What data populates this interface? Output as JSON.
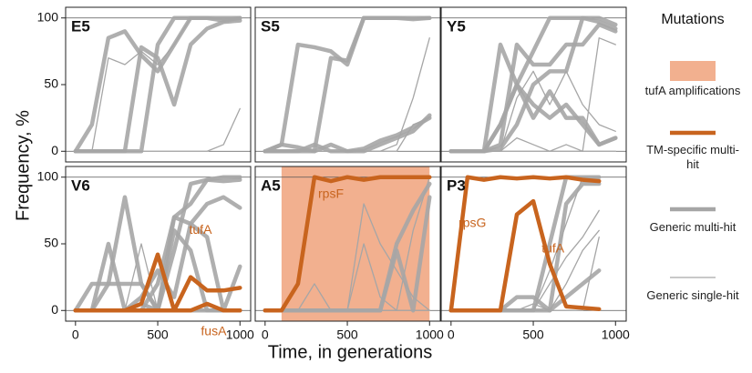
{
  "chart_data": {
    "type": "line",
    "xlabel": "Time, in generations",
    "ylabel": "Frequency, %",
    "xlim": [
      -60,
      1065
    ],
    "ylim": [
      -8,
      108
    ],
    "xticks": [
      0,
      500,
      1000
    ],
    "yticks": [
      0,
      50,
      100
    ],
    "legend": {
      "title": "Mutations",
      "entries": [
        {
          "label": "tufA amplifications",
          "style": "shade",
          "color": "#f2b08f"
        },
        {
          "label": "TM-specific multi-hit",
          "style": "multi",
          "color": "#c8641e"
        },
        {
          "label": "Generic multi-hit",
          "style": "multi",
          "color": "#a6a6a6"
        },
        {
          "label": "Generic single-hit",
          "style": "single",
          "color": "#a6a6a6"
        }
      ]
    },
    "panels": [
      {
        "label": "E5",
        "x": [
          0,
          100,
          200,
          300,
          400,
          500,
          600,
          700,
          800,
          900,
          1000
        ],
        "series": [
          {
            "style": "multi",
            "color": "#a6a6a6",
            "values": [
              0,
              20,
              85,
              90,
              72,
              60,
              80,
              100,
              100,
              98,
              100
            ]
          },
          {
            "style": "multi",
            "color": "#a6a6a6",
            "values": [
              0,
              0,
              0,
              0,
              78,
              70,
              35,
              80,
              92,
              97,
              98
            ]
          },
          {
            "style": "multi",
            "color": "#a6a6a6",
            "values": [
              0,
              0,
              0,
              0,
              0,
              80,
              100,
              100,
              100,
              100,
              100
            ]
          },
          {
            "style": "single",
            "color": "#a6a6a6",
            "values": [
              0,
              0,
              70,
              65,
              75,
              65,
              80,
              100,
              100,
              100,
              100
            ]
          },
          {
            "style": "single",
            "color": "#a6a6a6",
            "values": [
              0,
              0,
              0,
              0,
              0,
              0,
              0,
              0,
              0,
              5,
              32
            ]
          }
        ]
      },
      {
        "label": "S5",
        "x": [
          0,
          100,
          200,
          300,
          400,
          500,
          600,
          700,
          800,
          900,
          1000
        ],
        "series": [
          {
            "style": "multi",
            "color": "#a6a6a6",
            "values": [
              0,
              5,
              80,
              78,
              75,
              65,
              100,
              100,
              100,
              100,
              100
            ]
          },
          {
            "style": "multi",
            "color": "#a6a6a6",
            "values": [
              0,
              5,
              3,
              0,
              70,
              68,
              100,
              100,
              100,
              99,
              100
            ]
          },
          {
            "style": "multi",
            "color": "#a6a6a6",
            "values": [
              0,
              0,
              0,
              0,
              5,
              0,
              0,
              5,
              10,
              15,
              27
            ]
          },
          {
            "style": "multi",
            "color": "#a6a6a6",
            "values": [
              0,
              0,
              0,
              5,
              0,
              0,
              2,
              8,
              12,
              18,
              25
            ]
          },
          {
            "style": "single",
            "color": "#a6a6a6",
            "values": [
              0,
              0,
              0,
              0,
              0,
              0,
              0,
              0,
              5,
              40,
              85
            ]
          },
          {
            "style": "single",
            "color": "#a6a6a6",
            "values": [
              0,
              0,
              0,
              0,
              0,
              0,
              0,
              0,
              0,
              20,
              25
            ]
          }
        ]
      },
      {
        "label": "Y5",
        "x": [
          0,
          100,
          200,
          300,
          400,
          500,
          600,
          700,
          800,
          900,
          1000
        ],
        "series": [
          {
            "style": "multi",
            "color": "#a6a6a6",
            "values": [
              0,
              0,
              0,
              20,
              50,
              75,
              100,
              100,
              100,
              97,
              92
            ]
          },
          {
            "style": "multi",
            "color": "#a6a6a6",
            "values": [
              0,
              0,
              0,
              5,
              80,
              65,
              65,
              80,
              80,
              95,
              90
            ]
          },
          {
            "style": "multi",
            "color": "#a6a6a6",
            "values": [
              0,
              0,
              0,
              2,
              20,
              50,
              60,
              60,
              100,
              100,
              95
            ]
          },
          {
            "style": "multi",
            "color": "#a6a6a6",
            "values": [
              0,
              0,
              0,
              20,
              50,
              35,
              25,
              35,
              20,
              5,
              10
            ]
          },
          {
            "style": "multi",
            "color": "#a6a6a6",
            "values": [
              0,
              0,
              0,
              80,
              50,
              25,
              45,
              25,
              25,
              5,
              10
            ]
          },
          {
            "style": "single",
            "color": "#a6a6a6",
            "values": [
              0,
              0,
              0,
              0,
              40,
              60,
              35,
              60,
              35,
              20,
              15
            ]
          },
          {
            "style": "single",
            "color": "#a6a6a6",
            "values": [
              0,
              0,
              0,
              0,
              0,
              0,
              0,
              0,
              0,
              85,
              80
            ]
          },
          {
            "style": "single",
            "color": "#a6a6a6",
            "values": [
              0,
              0,
              0,
              0,
              10,
              5,
              0,
              5,
              0,
              0,
              0
            ]
          }
        ]
      },
      {
        "label": "V6",
        "x": [
          0,
          100,
          200,
          300,
          400,
          500,
          600,
          700,
          800,
          900,
          1000
        ],
        "series": [
          {
            "style": "multi",
            "color": "#a6a6a6",
            "values": [
              0,
              0,
              0,
              0,
              0,
              0,
              70,
              80,
              98,
              100,
              100
            ]
          },
          {
            "style": "multi",
            "color": "#a6a6a6",
            "values": [
              0,
              0,
              0,
              0,
              5,
              0,
              45,
              95,
              98,
              97,
              98
            ]
          },
          {
            "style": "multi",
            "color": "#a6a6a6",
            "values": [
              0,
              0,
              50,
              0,
              0,
              20,
              70,
              65,
              80,
              85,
              77
            ]
          },
          {
            "style": "multi",
            "color": "#a6a6a6",
            "values": [
              0,
              0,
              20,
              85,
              20,
              0,
              60,
              45,
              0,
              0,
              0
            ]
          },
          {
            "style": "multi",
            "color": "#a6a6a6",
            "values": [
              0,
              0,
              0,
              0,
              10,
              30,
              10,
              65,
              55,
              0,
              33
            ]
          },
          {
            "style": "multi",
            "color": "#a6a6a6",
            "values": [
              0,
              20,
              20,
              20,
              20,
              0,
              0,
              0,
              0,
              0,
              0
            ]
          },
          {
            "style": "single",
            "color": "#a6a6a6",
            "values": [
              0,
              0,
              0,
              0,
              50,
              0,
              0,
              0,
              0,
              0,
              0
            ]
          },
          {
            "style": "multi",
            "color": "#c8641e",
            "label": "tufA",
            "values": [
              0,
              0,
              0,
              0,
              5,
              42,
              0,
              25,
              15,
              15,
              17
            ]
          },
          {
            "style": "multi",
            "color": "#c8641e",
            "label": "fusA",
            "values": [
              0,
              0,
              0,
              0,
              0,
              0,
              0,
              0,
              5,
              0,
              0
            ]
          }
        ]
      },
      {
        "label": "A5",
        "x": [
          0,
          100,
          200,
          300,
          400,
          500,
          600,
          700,
          800,
          900,
          1000
        ],
        "shade": [
          100,
          1000
        ],
        "shade_color": "#f2b08f",
        "series": [
          {
            "style": "multi",
            "color": "#a6a6a6",
            "values": [
              0,
              0,
              0,
              0,
              0,
              0,
              0,
              0,
              50,
              75,
              95
            ]
          },
          {
            "style": "multi",
            "color": "#a6a6a6",
            "values": [
              0,
              0,
              0,
              0,
              0,
              0,
              0,
              0,
              45,
              0,
              85
            ]
          },
          {
            "style": "single",
            "color": "#a6a6a6",
            "values": [
              0,
              0,
              0,
              20,
              0,
              0,
              80,
              50,
              30,
              10,
              0
            ]
          },
          {
            "style": "single",
            "color": "#a6a6a6",
            "values": [
              0,
              0,
              0,
              0,
              0,
              0,
              50,
              10,
              0,
              0,
              0
            ]
          },
          {
            "style": "single",
            "color": "#a6a6a6",
            "values": [
              0,
              0,
              0,
              0,
              0,
              0,
              0,
              0,
              0,
              60,
              100
            ]
          },
          {
            "style": "multi",
            "color": "#c8641e",
            "label": "rpsF",
            "values": [
              0,
              0,
              20,
              100,
              97,
              100,
              98,
              100,
              100,
              100,
              100
            ]
          }
        ]
      },
      {
        "label": "P3",
        "x": [
          0,
          100,
          200,
          300,
          400,
          500,
          600,
          700,
          800,
          900,
          1000
        ],
        "series": [
          {
            "style": "multi",
            "color": "#a6a6a6",
            "values": [
              0,
              0,
              0,
              0,
              0,
              0,
              50,
              100,
              100,
              100,
              null
            ]
          },
          {
            "style": "multi",
            "color": "#a6a6a6",
            "values": [
              0,
              0,
              0,
              0,
              0,
              0,
              0,
              80,
              95,
              95,
              null
            ]
          },
          {
            "style": "multi",
            "color": "#a6a6a6",
            "values": [
              0,
              0,
              0,
              0,
              10,
              10,
              0,
              10,
              20,
              30,
              null
            ]
          },
          {
            "style": "single",
            "color": "#a6a6a6",
            "values": [
              0,
              0,
              0,
              0,
              0,
              0,
              30,
              65,
              100,
              100,
              null
            ]
          },
          {
            "style": "single",
            "color": "#a6a6a6",
            "values": [
              0,
              0,
              0,
              0,
              0,
              0,
              20,
              40,
              55,
              75,
              null
            ]
          },
          {
            "style": "single",
            "color": "#a6a6a6",
            "values": [
              0,
              0,
              0,
              0,
              0,
              0,
              0,
              0,
              0,
              55,
              null
            ]
          },
          {
            "style": "single",
            "color": "#a6a6a6",
            "values": [
              0,
              0,
              0,
              0,
              0,
              5,
              0,
              20,
              45,
              60,
              null
            ]
          },
          {
            "style": "multi",
            "color": "#c8641e",
            "label": "rpsG",
            "values": [
              0,
              100,
              98,
              100,
              99,
              100,
              99,
              100,
              98,
              97,
              null
            ]
          },
          {
            "style": "multi",
            "color": "#c8641e",
            "label": "tufA",
            "values": [
              0,
              0,
              0,
              0,
              72,
              82,
              35,
              3,
              2,
              1,
              null
            ]
          }
        ]
      }
    ]
  }
}
